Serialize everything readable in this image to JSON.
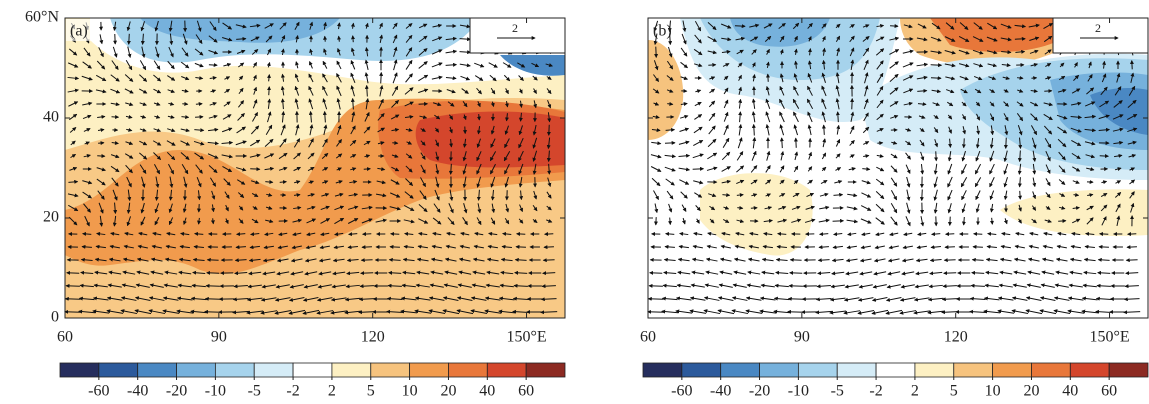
{
  "panels": [
    {
      "label": "(a)",
      "ref_vector": "2"
    },
    {
      "label": "(b)",
      "ref_vector": "2"
    }
  ],
  "map": {
    "xlim": [
      60,
      157.5
    ],
    "ylim": [
      0,
      60
    ],
    "xticks": [
      60,
      90,
      120,
      {
        "value": 150,
        "label": "150°E"
      }
    ],
    "yticks": [
      0,
      20,
      40,
      {
        "value": 60,
        "label": "60°N"
      }
    ]
  },
  "colorbar": {
    "levels": [
      -60,
      -40,
      -20,
      -10,
      -5,
      -2,
      2,
      5,
      10,
      20,
      40,
      60
    ],
    "colors": [
      "#262e5e",
      "#2c5a9c",
      "#4a88c3",
      "#76b1dc",
      "#a6d3ec",
      "#d5ecf7",
      "#ffffff",
      "#fdf0c3",
      "#f6c37e",
      "#f19b4d",
      "#e8773a",
      "#d4462c",
      "#8c2a22"
    ]
  }
}
